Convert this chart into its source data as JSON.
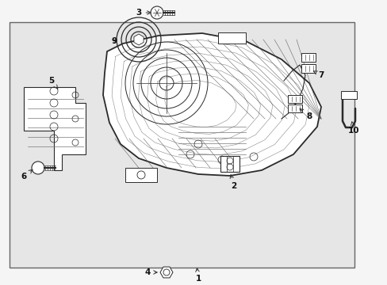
{
  "bg_color": "#f5f5f5",
  "box_bg": "#e8e8e8",
  "lc": "#2a2a2a",
  "fig_width": 4.89,
  "fig_height": 3.6,
  "dpi": 100
}
